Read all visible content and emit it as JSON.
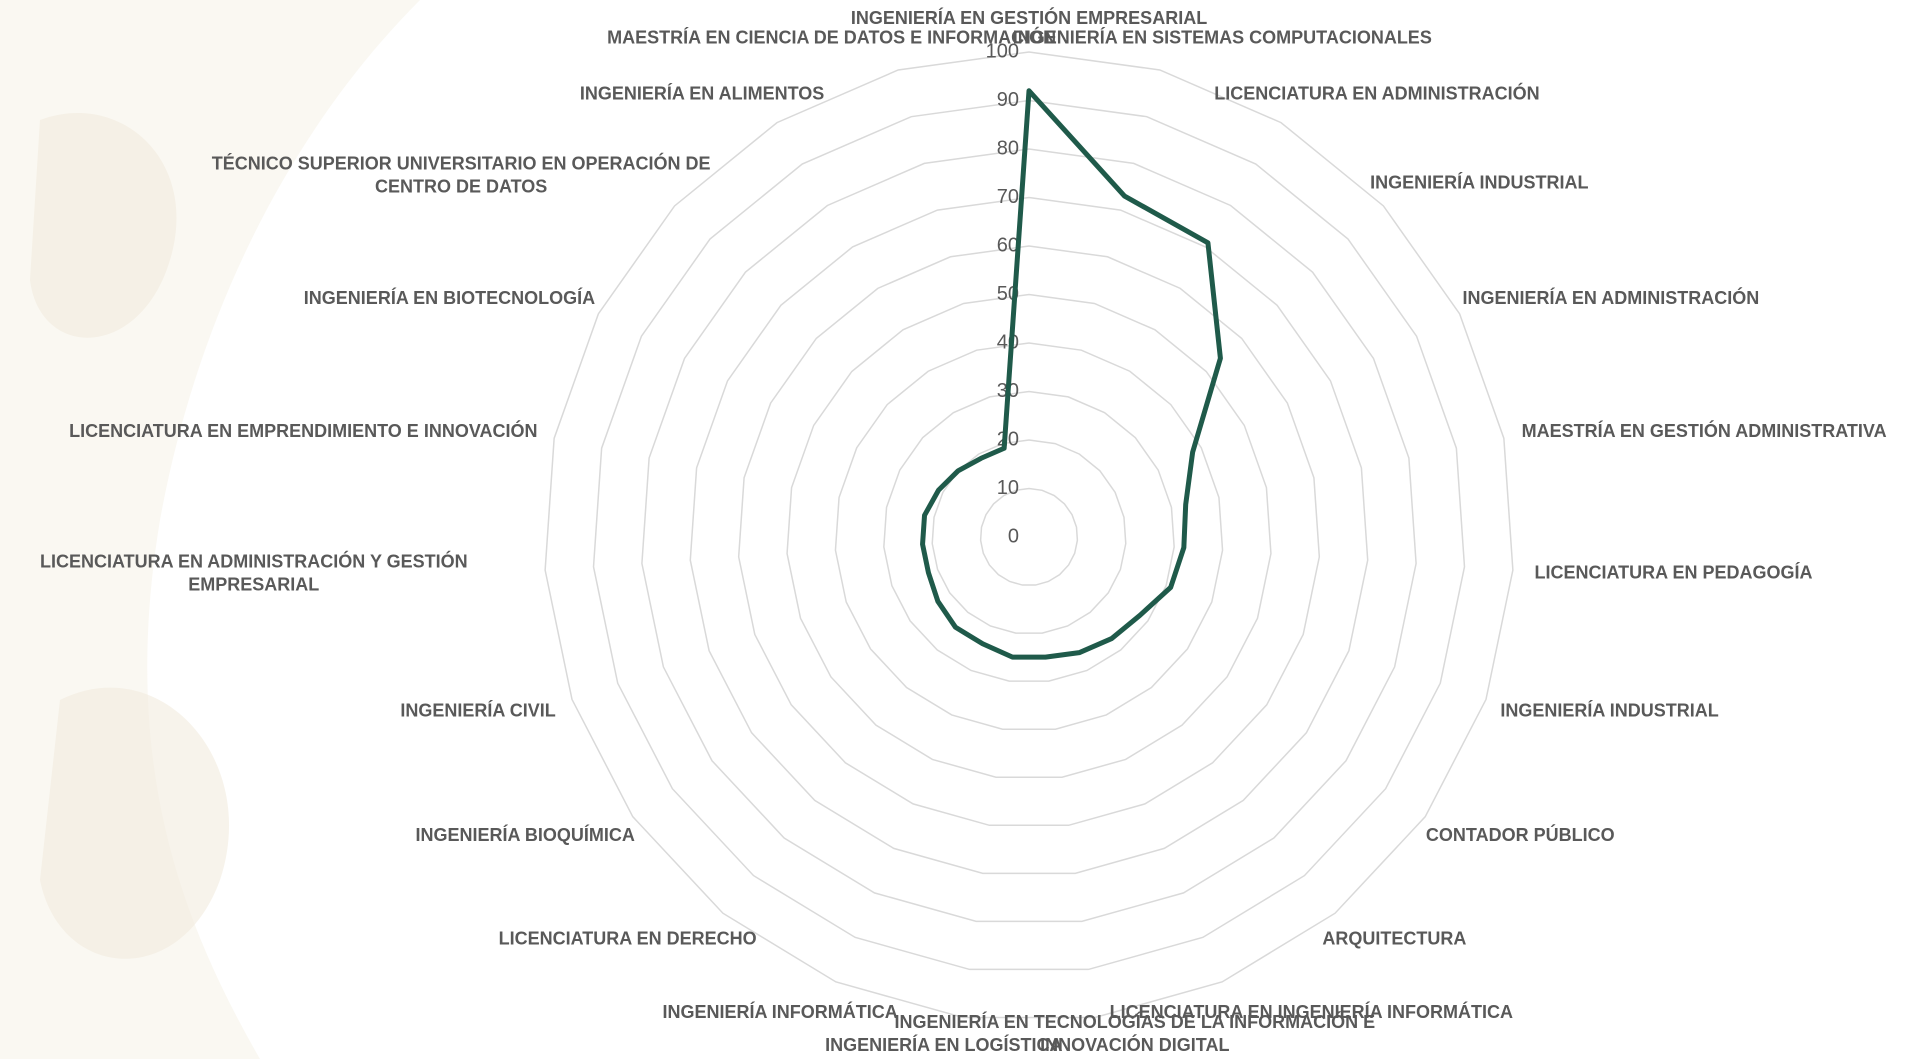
{
  "chart_data": {
    "type": "radar",
    "categories": [
      "INGENIERÍA EN GESTIÓN EMPRESARIAL",
      "INGENIERÍA EN SISTEMAS COMPUTACIONALES",
      "LICENCIATURA EN ADMINISTRACIÓN",
      "INGENIERÍA INDUSTRIAL",
      "INGENIERÍA EN ADMINISTRACIÓN",
      "MAESTRÍA EN GESTIÓN ADMINISTRATIVA",
      "LICENCIATURA EN PEDAGOGÍA",
      "INGENIERÍA INDUSTRIAL",
      "CONTADOR PÚBLICO",
      "ARQUITECTURA",
      "LICENCIATURA EN INGENIERÍA INFORMÁTICA",
      "INGENIERÍA EN TECNOLOGÍAS DE LA INFORMACIÓN E INNOVACIÓN DIGITAL",
      "INGENIERÍA EN LOGÍSTICA",
      "INGENIERÍA INFORMÁTICA",
      "LICENCIATURA EN DERECHO",
      "INGENIERÍA BIOQUÍMICA",
      "INGENIERÍA CIVIL",
      "LICENCIATURA EN ADMINISTRACIÓN Y GESTIÓN EMPRESARIAL",
      "LICENCIATURA EN EMPRENDIMIENTO E INNOVACIÓN",
      "INGENIERÍA EN BIOTECNOLOGÍA",
      "TÉCNICO SUPERIOR UNIVERSITARIO EN OPERACIÓN DE CENTRO DE DATOS",
      "INGENIERÍA EN ALIMENTOS",
      "MAESTRÍA EN CIENCIA DE DATOS E INFORMACIÓN"
    ],
    "values": [
      92,
      73,
      71,
      54,
      38,
      33,
      32,
      31,
      28,
      27,
      26,
      25,
      25,
      24,
      24,
      23,
      22,
      22,
      22,
      21,
      20,
      19,
      19
    ],
    "color": "#1f5a4a",
    "ylim": [
      0,
      100
    ],
    "yticks": [
      0,
      10,
      20,
      30,
      40,
      50,
      60,
      70,
      80,
      90,
      100
    ],
    "grid": true
  }
}
